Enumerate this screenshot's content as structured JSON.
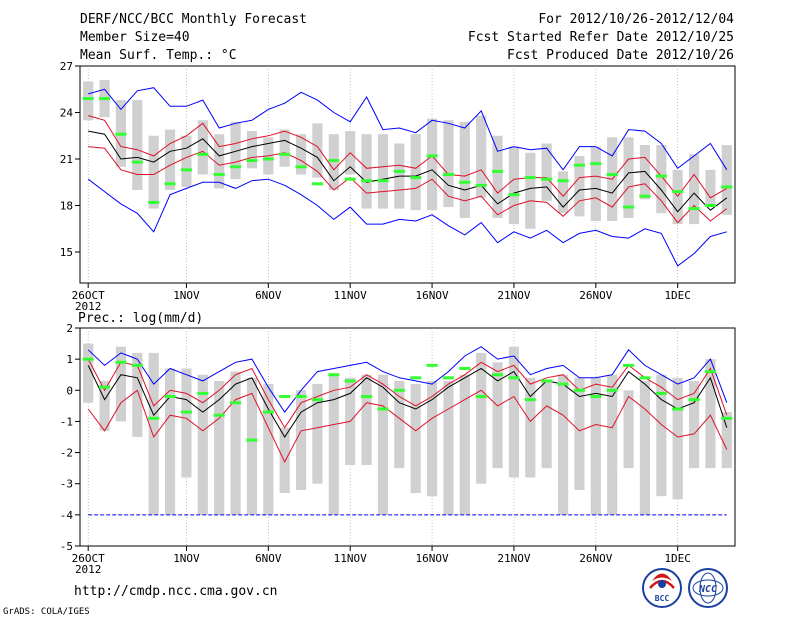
{
  "header": {
    "title": "DERF/NCC/BCC Monthly Forecast",
    "member_size": "Member Size=40",
    "variable_temp": "Mean Surf. Temp.: °C",
    "period": "For 2012/10/26-2012/12/04",
    "refer_date": "Fcst Started Refer Date 2012/10/25",
    "produced_date": "Fcst Produced Date 2012/10/26"
  },
  "footer": {
    "url": "http://cmdp.ncc.cma.gov.cn",
    "grads_credit": "GrADS: COLA/IGES",
    "logo_bcc_text": "BCC",
    "logo_ncc_text": "NCC"
  },
  "colors": {
    "envelope": "#0000ff",
    "spread": "#e0102a",
    "ens_mean": "#000000",
    "box": "#d0d0d0",
    "marker": "#33ff33",
    "grid": "#999999"
  },
  "chart_data": [
    {
      "id": "temperature",
      "type": "line",
      "variable": "Mean Surf. Temp.",
      "unit": "°C",
      "ylim": [
        13,
        27
      ],
      "yticks": [
        15,
        18,
        21,
        24,
        27
      ],
      "xtick_labels": [
        "26OCT",
        "1NOV",
        "6NOV",
        "11NOV",
        "16NOV",
        "21NOV",
        "26NOV",
        "1DEC"
      ],
      "xtick_days": [
        0,
        6,
        11,
        16,
        21,
        26,
        31,
        36
      ],
      "x_year_label": "2012",
      "days": 40,
      "series": [
        {
          "name": "Member max",
          "values": [
            25.2,
            25.5,
            24.2,
            25.4,
            25.6,
            24.4,
            24.4,
            24.8,
            23.0,
            23.3,
            23.5,
            24.2,
            24.6,
            25.3,
            24.8,
            24.0,
            23.4,
            25.0,
            22.9,
            23.0,
            22.7,
            23.5,
            23.3,
            23.0,
            24.1,
            21.5,
            21.8,
            21.6,
            21.7,
            20.3,
            21.8,
            21.8,
            21.2,
            22.9,
            22.8,
            22.0,
            20.4,
            21.2,
            22.0,
            20.3
          ]
        },
        {
          "name": "Spread upper",
          "values": [
            23.8,
            23.5,
            21.8,
            21.6,
            21.2,
            22.0,
            22.5,
            23.3,
            21.8,
            22.0,
            22.3,
            22.5,
            22.8,
            22.4,
            21.8,
            20.3,
            21.4,
            20.4,
            20.5,
            20.6,
            20.4,
            21.2,
            20.0,
            19.9,
            20.3,
            18.8,
            19.7,
            19.8,
            19.8,
            18.6,
            19.8,
            19.9,
            19.7,
            21.0,
            21.1,
            19.9,
            18.6,
            20.0,
            18.5,
            19.1
          ]
        },
        {
          "name": "Ensemble mean",
          "values": [
            22.8,
            22.6,
            21.0,
            21.1,
            20.8,
            21.5,
            21.7,
            22.3,
            21.2,
            21.5,
            21.8,
            22.0,
            22.2,
            21.7,
            21.1,
            19.6,
            20.5,
            19.5,
            19.7,
            19.9,
            19.9,
            20.3,
            19.3,
            19.0,
            19.3,
            18.1,
            18.8,
            19.1,
            19.2,
            17.9,
            19.0,
            19.1,
            18.8,
            20.1,
            20.2,
            19.0,
            17.6,
            18.8,
            17.7,
            18.5
          ]
        },
        {
          "name": "Spread lower",
          "values": [
            21.8,
            21.7,
            20.3,
            20.0,
            20.0,
            20.6,
            21.1,
            21.5,
            20.6,
            20.8,
            21.1,
            21.2,
            21.4,
            20.9,
            20.2,
            19.0,
            19.8,
            18.8,
            18.9,
            19.0,
            19.1,
            19.7,
            18.6,
            18.3,
            18.6,
            17.4,
            18.0,
            18.3,
            18.2,
            17.3,
            18.3,
            18.5,
            17.9,
            19.2,
            19.4,
            18.3,
            16.9,
            18.0,
            17.0,
            17.8
          ]
        },
        {
          "name": "Member min",
          "values": [
            19.7,
            18.9,
            18.1,
            17.5,
            16.3,
            18.7,
            19.1,
            19.5,
            19.5,
            19.1,
            19.6,
            19.7,
            19.3,
            18.7,
            18.0,
            17.1,
            17.9,
            16.8,
            16.8,
            17.1,
            17.0,
            17.4,
            16.7,
            16.1,
            16.9,
            15.6,
            16.3,
            15.9,
            16.4,
            15.6,
            16.2,
            16.4,
            16.0,
            15.9,
            16.5,
            16.2,
            14.1,
            14.9,
            16.0,
            16.3
          ]
        }
      ],
      "box_ranges": [
        [
          23.5,
          26.0
        ],
        [
          23.7,
          26.1
        ],
        [
          20.5,
          24.8
        ],
        [
          19.0,
          24.8
        ],
        [
          17.8,
          22.5
        ],
        [
          19.0,
          22.9
        ],
        [
          19.2,
          22.5
        ],
        [
          20.0,
          23.5
        ],
        [
          19.1,
          22.6
        ],
        [
          19.7,
          23.4
        ],
        [
          20.4,
          22.8
        ],
        [
          20.0,
          22.4
        ],
        [
          20.5,
          22.9
        ],
        [
          20.0,
          22.6
        ],
        [
          19.8,
          23.3
        ],
        [
          19.0,
          22.6
        ],
        [
          20.0,
          22.8
        ],
        [
          17.8,
          22.6
        ],
        [
          17.8,
          22.6
        ],
        [
          17.8,
          22.0
        ],
        [
          17.7,
          22.6
        ],
        [
          17.7,
          23.6
        ],
        [
          17.9,
          23.5
        ],
        [
          17.2,
          23.4
        ],
        [
          18.5,
          23.8
        ],
        [
          17.2,
          22.5
        ],
        [
          16.8,
          21.8
        ],
        [
          16.5,
          21.4
        ],
        [
          18.3,
          22.0
        ],
        [
          17.5,
          20.2
        ],
        [
          17.3,
          21.2
        ],
        [
          17.0,
          21.8
        ],
        [
          17.0,
          22.4
        ],
        [
          17.2,
          22.4
        ],
        [
          18.4,
          21.9
        ],
        [
          17.5,
          21.9
        ],
        [
          16.8,
          20.3
        ],
        [
          16.8,
          21.3
        ],
        [
          17.9,
          20.3
        ],
        [
          17.4,
          21.9
        ]
      ],
      "markers": [
        24.9,
        24.9,
        22.6,
        20.8,
        18.2,
        19.4,
        20.3,
        21.3,
        20.0,
        20.5,
        20.9,
        21.0,
        21.3,
        20.5,
        19.4,
        20.9,
        19.7,
        19.6,
        19.6,
        20.2,
        19.8,
        21.2,
        20.0,
        19.5,
        19.3,
        20.2,
        18.7,
        19.8,
        19.7,
        19.6,
        20.6,
        20.7,
        20.0,
        17.9,
        18.6,
        19.9,
        18.9,
        17.8,
        18.0,
        19.2
      ]
    },
    {
      "id": "precipitation",
      "type": "line",
      "variable": "Prec.",
      "unit": "log(mm/d)",
      "axis_title": "Prec.: log(mm/d)",
      "ylim": [
        -5,
        2
      ],
      "yticks": [
        -5,
        -4,
        -3,
        -2,
        -1,
        0,
        1,
        2
      ],
      "xtick_labels": [
        "26OCT",
        "1NOV",
        "6NOV",
        "11NOV",
        "16NOV",
        "21NOV",
        "26NOV",
        "1DEC"
      ],
      "xtick_days": [
        0,
        6,
        11,
        16,
        21,
        26,
        31,
        36
      ],
      "x_year_label": "2012",
      "days": 40,
      "baseline_value": -4,
      "series": [
        {
          "name": "Member max",
          "values": [
            1.3,
            0.8,
            1.2,
            1.0,
            0.2,
            0.7,
            0.5,
            0.3,
            0.6,
            0.9,
            1.0,
            0.1,
            -0.7,
            0.0,
            0.6,
            0.7,
            0.8,
            0.9,
            0.6,
            0.4,
            0.3,
            0.2,
            0.6,
            1.1,
            1.4,
            1.0,
            1.1,
            0.5,
            0.7,
            0.8,
            0.4,
            0.4,
            0.5,
            1.3,
            0.8,
            0.5,
            0.2,
            0.4,
            1.0,
            -0.4
          ]
        },
        {
          "name": "Spread upper",
          "values": [
            1.0,
            0.0,
            0.9,
            0.8,
            -0.5,
            0.0,
            -0.1,
            -0.4,
            0.0,
            0.5,
            0.7,
            -0.3,
            -1.2,
            -0.4,
            -0.2,
            0.0,
            0.1,
            0.5,
            0.2,
            -0.2,
            -0.5,
            -0.2,
            0.2,
            0.5,
            0.9,
            0.6,
            0.8,
            0.2,
            0.4,
            0.5,
            0.0,
            0.2,
            0.1,
            0.8,
            0.4,
            0.1,
            -0.3,
            -0.1,
            0.7,
            -0.8
          ]
        },
        {
          "name": "Ensemble mean",
          "values": [
            0.8,
            -0.3,
            0.5,
            0.4,
            -0.8,
            -0.2,
            -0.3,
            -0.7,
            -0.3,
            0.2,
            0.4,
            -0.6,
            -1.5,
            -0.7,
            -0.4,
            -0.3,
            -0.1,
            0.4,
            0.1,
            -0.4,
            -0.6,
            -0.3,
            0.1,
            0.4,
            0.7,
            0.3,
            0.6,
            -0.2,
            0.3,
            0.2,
            -0.2,
            -0.1,
            -0.2,
            0.6,
            0.2,
            -0.3,
            -0.6,
            -0.4,
            0.4,
            -1.2
          ]
        },
        {
          "name": "Spread lower",
          "values": [
            -0.6,
            -1.3,
            -0.4,
            0.0,
            -1.5,
            -0.8,
            -0.9,
            -1.3,
            -0.9,
            -0.3,
            -0.1,
            -1.2,
            -2.3,
            -1.3,
            -1.2,
            -1.1,
            -1.0,
            -0.4,
            -0.5,
            -0.9,
            -1.3,
            -0.9,
            -0.6,
            -0.3,
            0.0,
            -0.5,
            -0.2,
            -1.0,
            -0.5,
            -0.8,
            -1.3,
            -1.1,
            -1.2,
            -0.2,
            -0.6,
            -1.1,
            -1.5,
            -1.4,
            -0.8,
            -1.9
          ]
        }
      ],
      "box_ranges": [
        [
          -0.4,
          1.5
        ],
        [
          -1.3,
          0.3
        ],
        [
          -1.0,
          1.4
        ],
        [
          -1.5,
          1.2
        ],
        [
          -4.0,
          1.2
        ],
        [
          -4.0,
          0.7
        ],
        [
          -2.8,
          0.7
        ],
        [
          -4.0,
          0.5
        ],
        [
          -4.0,
          0.3
        ],
        [
          -4.0,
          0.6
        ],
        [
          -4.0,
          0.4
        ],
        [
          -4.0,
          0.2
        ],
        [
          -3.3,
          -1.2
        ],
        [
          -3.2,
          0.0
        ],
        [
          -3.0,
          0.2
        ],
        [
          -4.0,
          0.5
        ],
        [
          -2.4,
          0.4
        ],
        [
          -2.4,
          0.5
        ],
        [
          -4.0,
          0.5
        ],
        [
          -2.5,
          0.3
        ],
        [
          -3.3,
          0.2
        ],
        [
          -3.4,
          0.3
        ],
        [
          -4.0,
          0.3
        ],
        [
          -4.0,
          0.5
        ],
        [
          -3.0,
          1.2
        ],
        [
          -2.5,
          0.9
        ],
        [
          -2.8,
          1.4
        ],
        [
          -2.8,
          0.4
        ],
        [
          -2.5,
          0.3
        ],
        [
          -4.0,
          0.5
        ],
        [
          -3.2,
          0.4
        ],
        [
          -4.0,
          0.4
        ],
        [
          -4.0,
          0.5
        ],
        [
          -2.5,
          0.0
        ],
        [
          -4.0,
          0.3
        ],
        [
          -3.4,
          0.5
        ],
        [
          -3.5,
          0.4
        ],
        [
          -2.5,
          0.3
        ],
        [
          -2.5,
          1.0
        ],
        [
          -2.5,
          -0.7
        ]
      ],
      "markers": [
        1.0,
        0.1,
        0.9,
        0.8,
        -0.9,
        -0.2,
        -0.7,
        -0.1,
        -0.8,
        -0.4,
        -1.6,
        -0.7,
        -0.2,
        -0.2,
        -0.3,
        0.5,
        0.3,
        -0.2,
        -0.6,
        0.0,
        0.4,
        0.8,
        0.4,
        0.7,
        -0.2,
        0.5,
        0.4,
        -0.3,
        0.3,
        0.2,
        0.0,
        -0.2,
        0.0,
        0.8,
        0.4,
        -0.1,
        -0.6,
        -0.3,
        0.6,
        -0.9
      ]
    }
  ]
}
